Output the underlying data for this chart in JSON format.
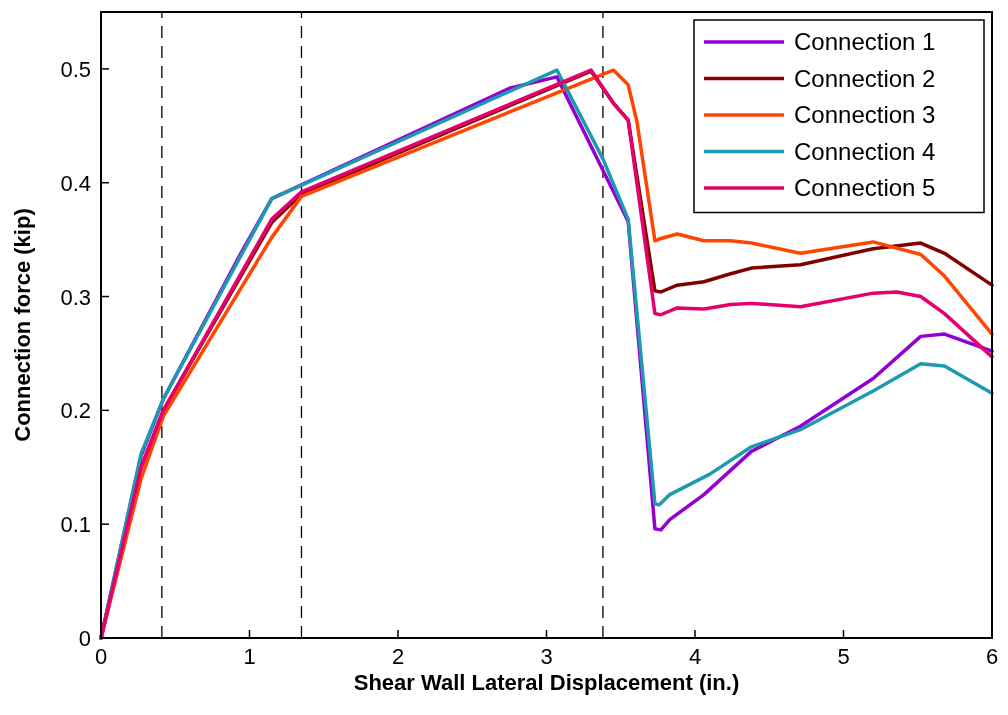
{
  "chart_data": {
    "type": "line",
    "xlabel": "Shear Wall Lateral Displacement (in.)",
    "ylabel": "Connection force (kip)",
    "xlim": [
      0,
      6
    ],
    "ylim": [
      0,
      0.55
    ],
    "xticks": [
      0,
      1,
      2,
      3,
      4,
      5,
      6
    ],
    "yticks": [
      0,
      0.1,
      0.2,
      0.3,
      0.4,
      0.5
    ],
    "grid": false,
    "legend": "top right",
    "line_style": "solid",
    "marker": "none",
    "ref_lines": [
      {
        "axis": "x",
        "value": 0.41,
        "line_style": "dashed",
        "color": "#000000"
      },
      {
        "axis": "x",
        "value": 1.35,
        "line_style": "dashed",
        "color": "#000000"
      },
      {
        "axis": "x",
        "value": 3.38,
        "line_style": "dashed",
        "color": "#000000"
      }
    ],
    "series": [
      {
        "name": "Connection 1",
        "color": "#9400d3",
        "x": [
          0,
          0.27,
          0.42,
          0.95,
          1.15,
          2.75,
          3.07,
          3.38,
          3.55,
          3.73,
          3.77,
          3.83,
          4.06,
          4.38,
          4.71,
          5.2,
          5.52,
          5.68,
          6
        ],
        "values": [
          0,
          0.16,
          0.21,
          0.34,
          0.386,
          0.483,
          0.493,
          0.411,
          0.366,
          0.096,
          0.095,
          0.104,
          0.126,
          0.164,
          0.186,
          0.228,
          0.265,
          0.267,
          0.252
        ]
      },
      {
        "name": "Connection 2",
        "color": "#800000",
        "x": [
          0,
          0.27,
          0.42,
          1.15,
          1.35,
          3.3,
          3.45,
          3.55,
          3.73,
          3.77,
          3.88,
          4.06,
          4.24,
          4.38,
          4.71,
          5.2,
          5.52,
          5.68,
          6
        ],
        "values": [
          0,
          0.15,
          0.2,
          0.365,
          0.39,
          0.498,
          0.47,
          0.455,
          0.305,
          0.304,
          0.31,
          0.313,
          0.32,
          0.325,
          0.328,
          0.342,
          0.347,
          0.338,
          0.31
        ]
      },
      {
        "name": "Connection 3",
        "color": "#ff4500",
        "x": [
          0,
          0.27,
          0.42,
          1.15,
          1.35,
          3.45,
          3.55,
          3.61,
          3.73,
          3.77,
          3.88,
          4.06,
          4.24,
          4.38,
          4.71,
          5.2,
          5.52,
          5.68,
          6
        ],
        "values": [
          0,
          0.14,
          0.195,
          0.352,
          0.388,
          0.499,
          0.486,
          0.453,
          0.349,
          0.351,
          0.355,
          0.349,
          0.349,
          0.347,
          0.338,
          0.348,
          0.337,
          0.318,
          0.267
        ]
      },
      {
        "name": "Connection 4",
        "color": "#1e9ab0",
        "x": [
          0,
          0.27,
          0.42,
          1.15,
          3.07,
          3.38,
          3.55,
          3.73,
          3.76,
          3.83,
          4.1,
          4.38,
          4.71,
          5.2,
          5.52,
          5.68,
          6
        ],
        "values": [
          0,
          0.162,
          0.21,
          0.386,
          0.499,
          0.421,
          0.368,
          0.118,
          0.117,
          0.126,
          0.144,
          0.168,
          0.183,
          0.217,
          0.241,
          0.239,
          0.215
        ]
      },
      {
        "name": "Connection 5",
        "color": "#e6006e",
        "x": [
          0,
          0.27,
          0.42,
          1.15,
          1.35,
          3.3,
          3.45,
          3.55,
          3.73,
          3.77,
          3.88,
          4.06,
          4.24,
          4.38,
          4.71,
          5.2,
          5.36,
          5.52,
          5.68,
          6
        ],
        "values": [
          0,
          0.15,
          0.2,
          0.368,
          0.392,
          0.499,
          0.47,
          0.455,
          0.285,
          0.284,
          0.29,
          0.289,
          0.293,
          0.294,
          0.291,
          0.303,
          0.304,
          0.3,
          0.285,
          0.247
        ]
      }
    ]
  }
}
